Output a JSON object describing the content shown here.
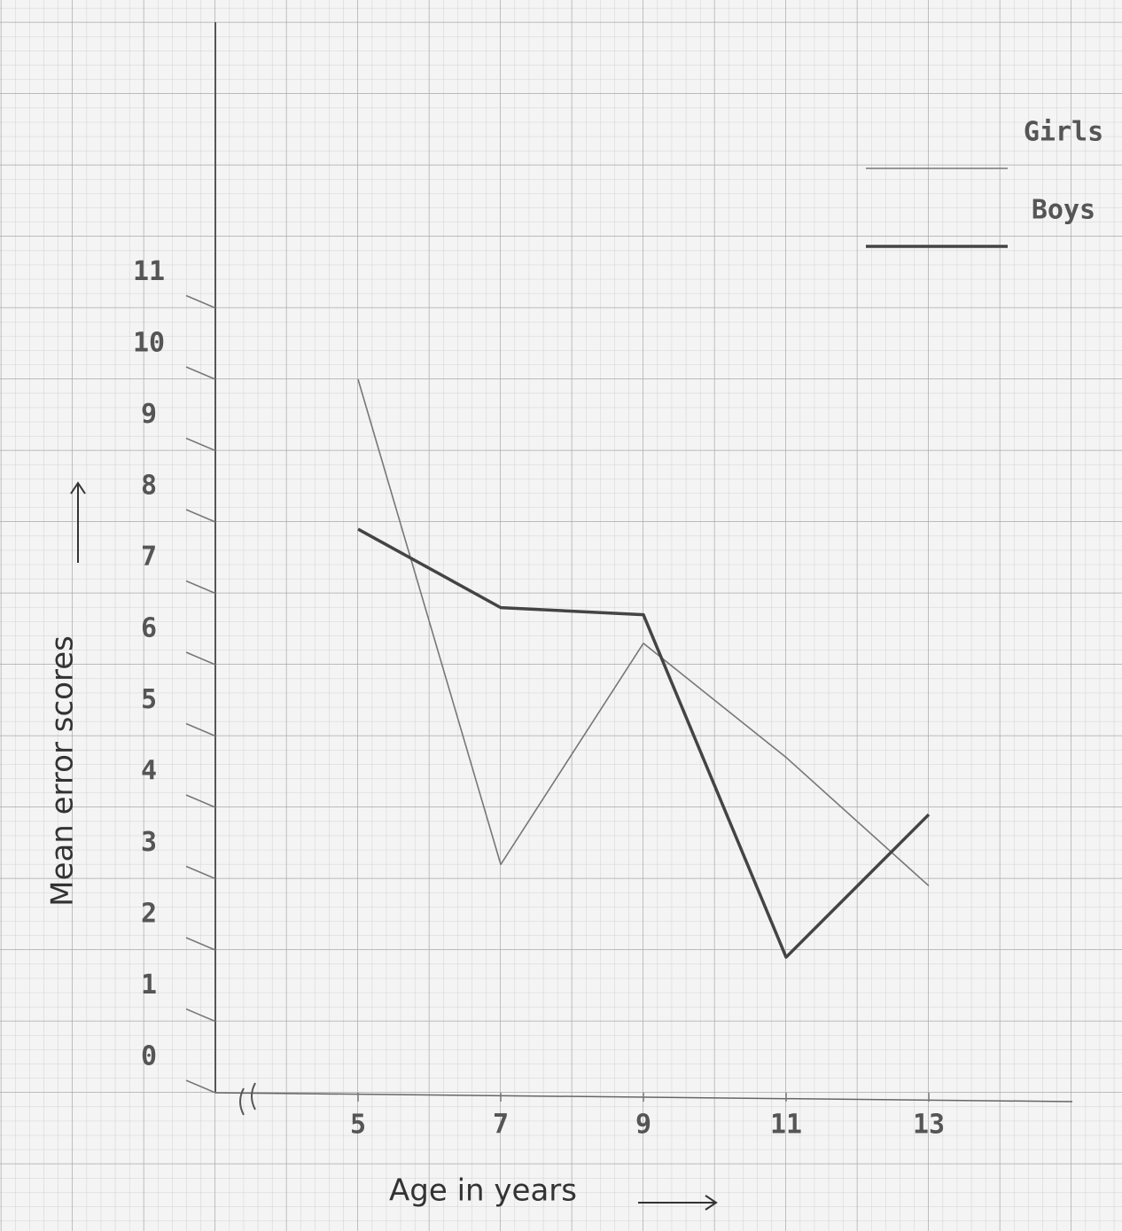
{
  "chart_data": {
    "type": "line",
    "x_label": "Age in years",
    "y_label": "Mean error scores",
    "x": [
      5,
      7,
      9,
      11,
      13
    ],
    "series": [
      {
        "name": "Girls",
        "color": "#777777",
        "width": 1.6,
        "values": [
          10.0,
          3.2,
          6.3,
          4.7,
          2.9
        ]
      },
      {
        "name": "Boys",
        "color": "#444444",
        "width": 3.5,
        "values": [
          7.9,
          6.8,
          6.7,
          1.9,
          3.9
        ]
      }
    ],
    "xlim": [
      3,
      15
    ],
    "xticks": [
      5,
      7,
      9,
      11,
      13
    ],
    "ylim": [
      0,
      15
    ],
    "yticks": [
      0,
      1,
      2,
      3,
      4,
      5,
      6,
      7,
      8,
      9,
      10,
      11
    ],
    "legend": "top-right"
  }
}
